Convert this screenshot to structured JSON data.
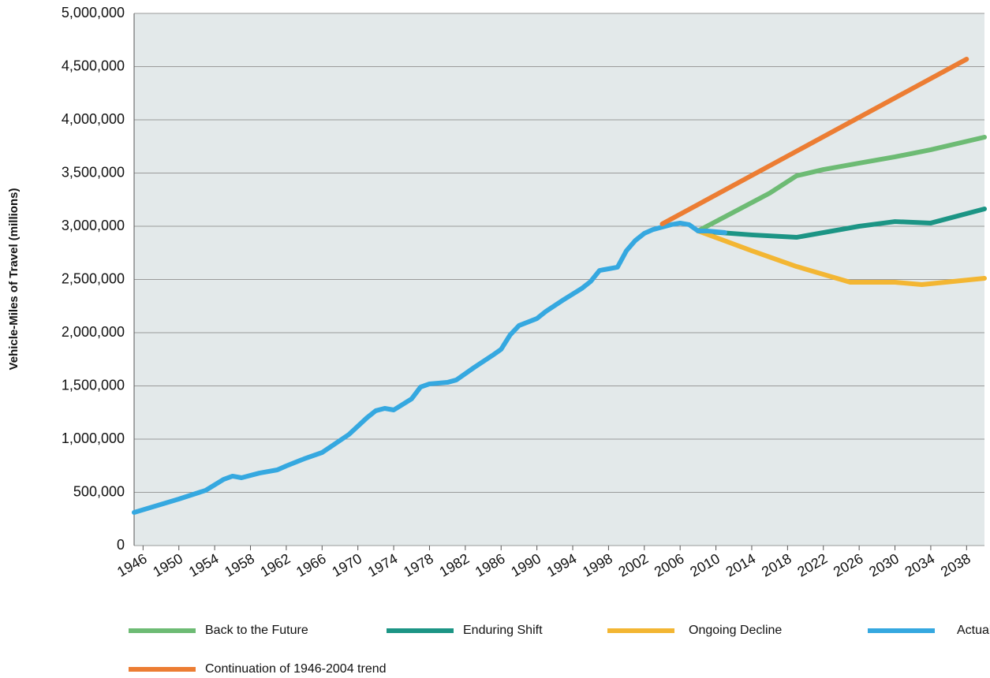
{
  "chart_data": {
    "type": "line",
    "y_label": "Vehicle-Miles of Travel (millions)",
    "xlim": [
      1945,
      2040
    ],
    "xticks": [
      1946,
      1950,
      1954,
      1958,
      1962,
      1966,
      1970,
      1974,
      1978,
      1982,
      1986,
      1990,
      1994,
      1998,
      2002,
      2006,
      2010,
      2014,
      2018,
      2022,
      2026,
      2030,
      2034,
      2038
    ],
    "ylim": [
      0,
      5000000
    ],
    "yticks": [
      0,
      {
        "value": 500000,
        "label": "500,000"
      },
      {
        "value": 1000000,
        "label": "1,000,000"
      },
      {
        "value": 1500000,
        "label": "1,500,000"
      },
      {
        "value": 2000000,
        "label": "2,000,000"
      },
      {
        "value": 2500000,
        "label": "2,500,000"
      },
      {
        "value": 3000000,
        "label": "3,000,000"
      },
      {
        "value": 3500000,
        "label": "3,500,000"
      },
      {
        "value": 4000000,
        "label": "4,000,000"
      },
      {
        "value": 4500000,
        "label": "4,500,000"
      },
      {
        "value": 5000000,
        "label": "5,000,000"
      }
    ],
    "grid": true,
    "background": "#e3e9ea",
    "series": [
      {
        "name": "Back to the Future",
        "color": "#6dbb74",
        "x": [
          2008,
          2016,
          2019,
          2022,
          2026,
          2030,
          2034,
          2040
        ],
        "values": [
          2956000,
          3311000,
          3474000,
          3533000,
          3593000,
          3652000,
          3719000,
          3837000
        ]
      },
      {
        "name": "Enduring Shift",
        "color": "#1c9585",
        "x": [
          2008,
          2014,
          2019,
          2026,
          2030,
          2034,
          2040
        ],
        "values": [
          2956000,
          2919000,
          2896000,
          3000000,
          3044000,
          3030000,
          3163000
        ]
      },
      {
        "name": "Ongoing Decline",
        "color": "#f3b633",
        "x": [
          2008,
          2014,
          2019,
          2025,
          2030,
          2033,
          2040
        ],
        "values": [
          2956000,
          2770000,
          2622000,
          2474000,
          2474000,
          2452000,
          2511000
        ]
      },
      {
        "name": "Actual",
        "color": "#35a8e0",
        "x": [
          1945,
          1950,
          1953,
          1955,
          1956,
          1957,
          1959,
          1961,
          1962,
          1964,
          1966,
          1969,
          1971,
          1972,
          1973,
          1974,
          1976,
          1977,
          1978,
          1980,
          1981,
          1983,
          1985,
          1986,
          1987,
          1988,
          1990,
          1991,
          1993,
          1995,
          1996,
          1997,
          1998,
          1999,
          2000,
          2001,
          2002,
          2003,
          2005,
          2006,
          2007,
          2008,
          2009,
          2011
        ],
        "values": [
          311000,
          437000,
          519000,
          622000,
          652000,
          637000,
          681000,
          711000,
          748000,
          815000,
          874000,
          1044000,
          1200000,
          1267000,
          1289000,
          1274000,
          1378000,
          1489000,
          1519000,
          1533000,
          1556000,
          1674000,
          1785000,
          1844000,
          1978000,
          2067000,
          2133000,
          2200000,
          2311000,
          2415000,
          2481000,
          2585000,
          2600000,
          2615000,
          2770000,
          2867000,
          2933000,
          2970000,
          3015000,
          3030000,
          3015000,
          2956000,
          2956000,
          2941000
        ]
      },
      {
        "name": "Continuation of 1946-2004 trend",
        "color": "#ec7d33",
        "x": [
          2004,
          2038
        ],
        "values": [
          3022000,
          4570000
        ]
      }
    ]
  }
}
